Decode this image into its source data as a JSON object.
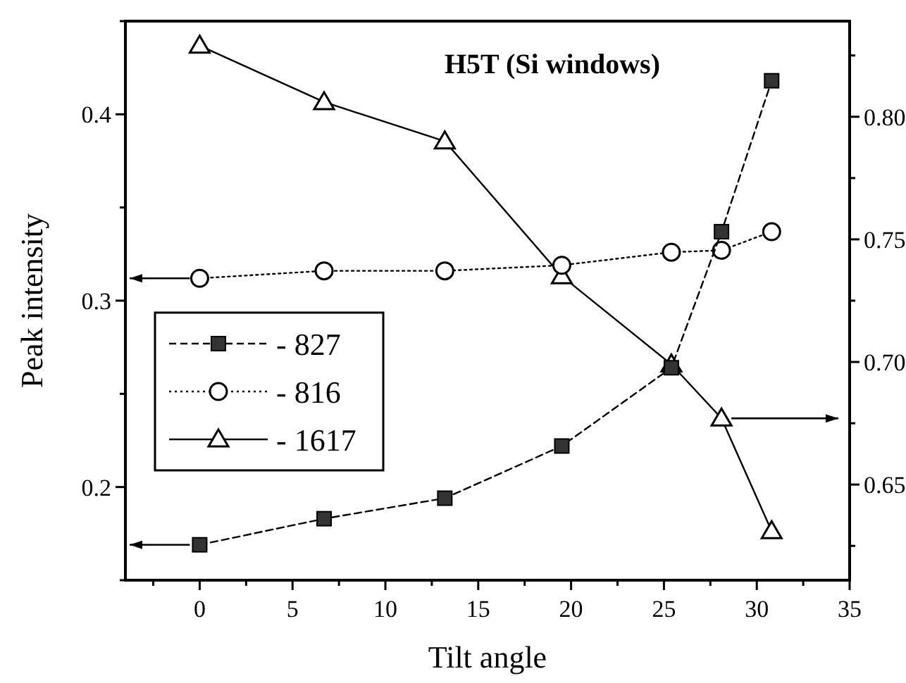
{
  "chart_data": {
    "type": "line",
    "title": "H5T (Si windows)",
    "xlabel": "Tilt angle",
    "ylabel": "Peak intensity",
    "x": [
      0,
      6.7,
      13.2,
      19.5,
      25.4,
      28.1,
      30.8
    ],
    "series": [
      {
        "name": "- 827",
        "color": "#000000",
        "marker": "square",
        "line_style": "dashed",
        "values": [
          0.169,
          0.183,
          0.194,
          0.222,
          0.264,
          0.337,
          0.418
        ]
      },
      {
        "name": "- 816",
        "color": "#000000",
        "marker": "circle",
        "line_style": "dotted",
        "values": [
          0.312,
          0.316,
          0.316,
          0.319,
          0.326,
          0.327,
          0.337
        ]
      },
      {
        "name": "- 1617",
        "color": "#000000",
        "marker": "triangle",
        "line_style": "solid",
        "axis": "y2",
        "values": [
          0.829,
          0.806,
          0.79,
          0.735,
          0.699,
          0.677,
          0.631
        ]
      }
    ],
    "xlim": [
      -4,
      35
    ],
    "xticks": [
      {
        "value": -2.5,
        "label": null
      },
      0,
      {
        "value": 2.5,
        "label": null
      },
      5,
      {
        "value": 7.5,
        "label": null
      },
      10,
      {
        "value": 12.5,
        "label": null
      },
      15,
      {
        "value": 17.5,
        "label": null
      },
      20,
      {
        "value": 22.5,
        "label": null
      },
      25,
      {
        "value": 27.5,
        "label": null
      },
      30,
      {
        "value": 32.5,
        "label": null
      },
      35
    ],
    "ylim": [
      0.15,
      0.45
    ],
    "yticks": [
      {
        "value": 0.15,
        "label": null
      },
      0.2,
      {
        "value": 0.25,
        "label": null
      },
      0.3,
      {
        "value": 0.35,
        "label": null
      },
      0.4,
      {
        "value": 0.45,
        "label": null
      }
    ],
    "y2lim": [
      0.611,
      0.839
    ],
    "y2ticks": [
      {
        "value": 0.625,
        "label": null
      },
      {
        "value": 0.65,
        "label": "0.65"
      },
      {
        "value": 0.675,
        "label": null
      },
      {
        "value": 0.7,
        "label": "0.70"
      },
      {
        "value": 0.725,
        "label": null
      },
      {
        "value": 0.75,
        "label": "0.75"
      },
      {
        "value": 0.775,
        "label": null
      },
      {
        "value": 0.8,
        "label": "0.80"
      },
      {
        "value": 0.825,
        "label": null
      }
    ],
    "legend": "left",
    "grid": false
  }
}
